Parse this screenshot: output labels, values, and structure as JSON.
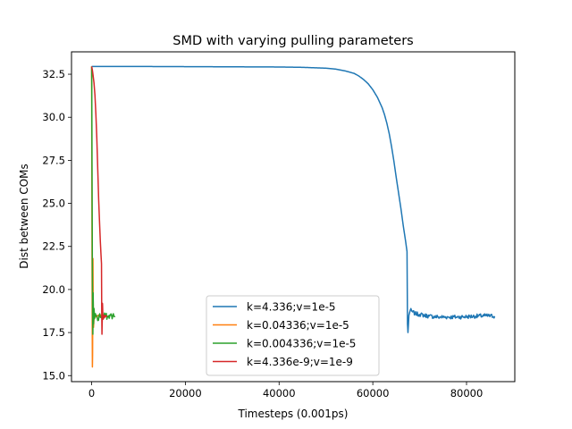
{
  "chart_data": {
    "type": "line",
    "title": "SMD with varying pulling parameters",
    "xlabel": "Timesteps (0.001ps)",
    "ylabel": "Dist between COMs",
    "xlim": [
      -4300,
      90300
    ],
    "ylim": [
      14.65,
      33.8
    ],
    "xticks": [
      0,
      20000,
      40000,
      60000,
      80000
    ],
    "xtick_labels": [
      "0",
      "20000",
      "40000",
      "60000",
      "80000"
    ],
    "yticks": [
      15.0,
      17.5,
      20.0,
      22.5,
      25.0,
      27.5,
      30.0,
      32.5
    ],
    "ytick_labels": [
      "15.0",
      "17.5",
      "20.0",
      "22.5",
      "25.0",
      "27.5",
      "30.0",
      "32.5"
    ],
    "grid": false,
    "legend_position": "lower center",
    "series": [
      {
        "name": "k=4.336;v=1e-5",
        "color": "#1f77b4",
        "noise": 0.12,
        "x": [
          0,
          10000,
          20000,
          30000,
          40000,
          45000,
          50000,
          52000,
          54000,
          56000,
          57000,
          58000,
          59000,
          60000,
          61000,
          62000,
          62500,
          63000,
          63500,
          64000,
          64500,
          65000,
          65500,
          66000,
          66500,
          67000,
          67300,
          67400,
          67500,
          67700,
          68000,
          68500,
          69000,
          70000,
          72000,
          74000,
          76000,
          78000,
          80000,
          82000,
          84000,
          86000
        ],
        "y": [
          32.95,
          32.95,
          32.94,
          32.93,
          32.92,
          32.9,
          32.85,
          32.8,
          32.7,
          32.55,
          32.4,
          32.2,
          31.95,
          31.6,
          31.15,
          30.55,
          30.15,
          29.65,
          29.05,
          28.3,
          27.45,
          26.5,
          25.6,
          24.7,
          23.7,
          22.8,
          22.2,
          18.0,
          17.5,
          18.5,
          18.8,
          18.7,
          18.6,
          18.55,
          18.45,
          18.4,
          18.4,
          18.4,
          18.42,
          18.45,
          18.48,
          18.45
        ]
      },
      {
        "name": "k=0.04336;v=1e-5",
        "color": "#ff7f0e",
        "noise": 0.05,
        "x": [
          0,
          20,
          50,
          80,
          120,
          160,
          200,
          240,
          280,
          320,
          400,
          500,
          700,
          1000,
          1400,
          1800,
          2200
        ],
        "y": [
          32.95,
          30.0,
          26.0,
          22.0,
          18.0,
          15.5,
          16.2,
          19.0,
          21.8,
          19.5,
          17.8,
          18.3,
          18.5,
          18.4,
          18.5,
          18.45,
          18.5
        ]
      },
      {
        "name": "k=0.004336;v=1e-5",
        "color": "#2ca02c",
        "noise": 0.18,
        "x": [
          0,
          30,
          60,
          100,
          150,
          200,
          260,
          320,
          400,
          500,
          600,
          800,
          1000,
          1300,
          1600,
          2000,
          2500,
          3000,
          3500,
          4000,
          4500,
          5000
        ],
        "y": [
          32.95,
          31.5,
          29.0,
          25.5,
          21.5,
          18.5,
          17.4,
          19.8,
          18.0,
          18.9,
          18.3,
          18.6,
          18.5,
          18.2,
          18.5,
          18.4,
          18.5,
          18.45,
          18.4,
          18.5,
          18.45,
          18.45
        ]
      },
      {
        "name": "k=4.336e-9;v=1e-9",
        "color": "#d62728",
        "noise": 0.1,
        "x": [
          0,
          150,
          300,
          500,
          700,
          900,
          1100,
          1300,
          1500,
          1700,
          1850,
          2000,
          2100,
          2150,
          2200,
          2260,
          2300,
          2350,
          2400,
          2500,
          2600,
          2800,
          3000,
          3200
        ],
        "y": [
          32.95,
          32.75,
          32.45,
          32.0,
          31.3,
          30.2,
          28.8,
          27.0,
          25.2,
          23.8,
          22.8,
          22.0,
          21.5,
          18.7,
          17.4,
          18.2,
          19.2,
          18.9,
          18.4,
          18.3,
          18.5,
          18.4,
          18.45,
          18.4
        ]
      }
    ]
  }
}
